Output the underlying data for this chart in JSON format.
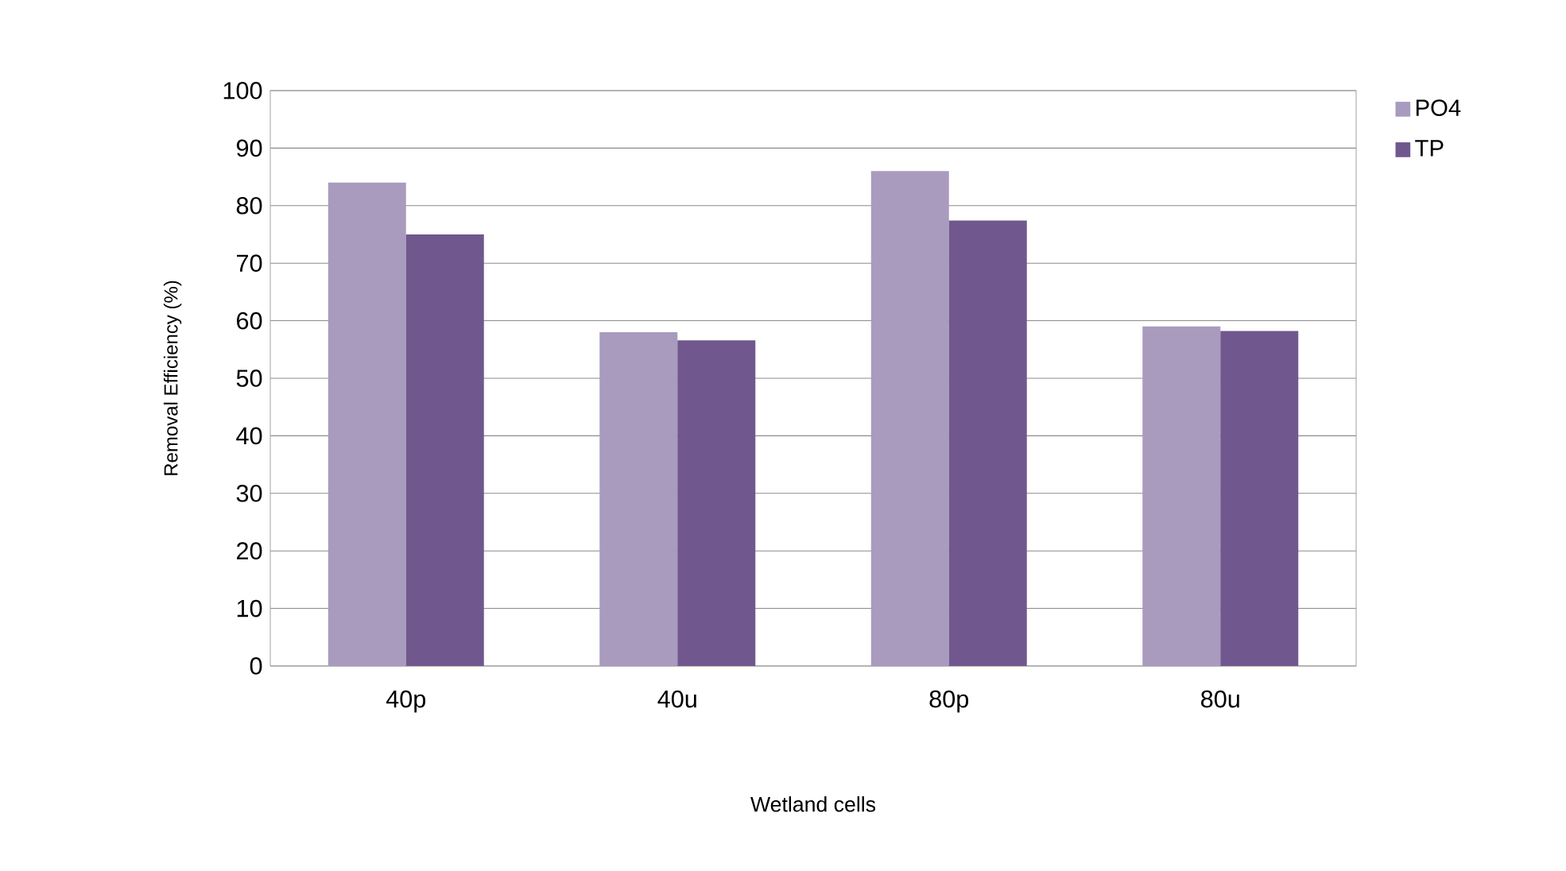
{
  "chart_data": {
    "type": "bar",
    "xlabel": "Wetland cells",
    "ylabel": "Removal Efficiency (%)",
    "categories": [
      "40p",
      "40u",
      "80p",
      "80u"
    ],
    "series": [
      {
        "name": "PO4",
        "color": "#a99bbe",
        "values": [
          84,
          58,
          86,
          59
        ]
      },
      {
        "name": "TP",
        "color": "#70588e",
        "values": [
          75,
          56.6,
          77.4,
          58.2
        ]
      }
    ],
    "ylim": [
      0,
      100
    ],
    "yticks": [
      0,
      10,
      20,
      30,
      40,
      50,
      60,
      70,
      80,
      90,
      100
    ],
    "grid": "y",
    "legend": "top right"
  }
}
